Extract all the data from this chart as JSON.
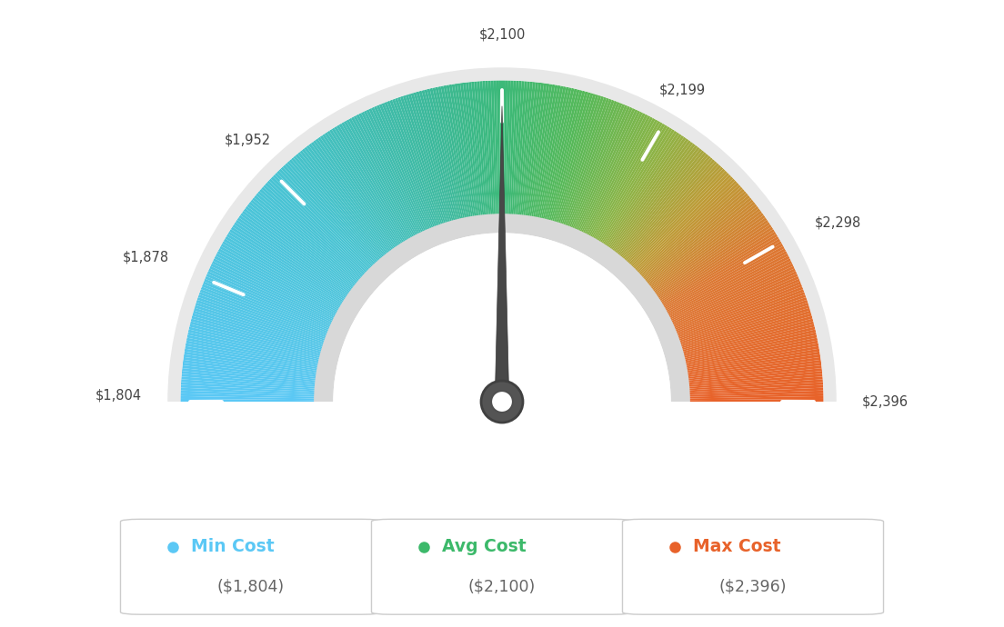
{
  "min_val": 1804,
  "max_val": 2396,
  "avg_val": 2100,
  "tick_labels": [
    "$1,804",
    "$1,878",
    "$1,952",
    "$2,100",
    "$2,199",
    "$2,298",
    "$2,396"
  ],
  "tick_values": [
    1804,
    1878,
    1952,
    2100,
    2199,
    2298,
    2396
  ],
  "min_cost_label": "Min Cost",
  "avg_cost_label": "Avg Cost",
  "max_cost_label": "Max Cost",
  "min_cost_value": "($1,804)",
  "avg_cost_value": "($2,100)",
  "max_cost_value": "($2,396)",
  "color_min": "#5bc8f5",
  "color_avg": "#3cb96a",
  "color_max": "#e8622a",
  "background": "#ffffff",
  "gauge_colors": [
    [
      0.0,
      [
        91,
        200,
        245
      ]
    ],
    [
      0.25,
      [
        72,
        195,
        210
      ]
    ],
    [
      0.42,
      [
        61,
        185,
        155
      ]
    ],
    [
      0.5,
      [
        60,
        185,
        120
      ]
    ],
    [
      0.58,
      [
        85,
        185,
        90
      ]
    ],
    [
      0.67,
      [
        140,
        180,
        70
      ]
    ],
    [
      0.75,
      [
        190,
        155,
        55
      ]
    ],
    [
      0.83,
      [
        220,
        120,
        50
      ]
    ],
    [
      1.0,
      [
        232,
        98,
        42
      ]
    ]
  ]
}
